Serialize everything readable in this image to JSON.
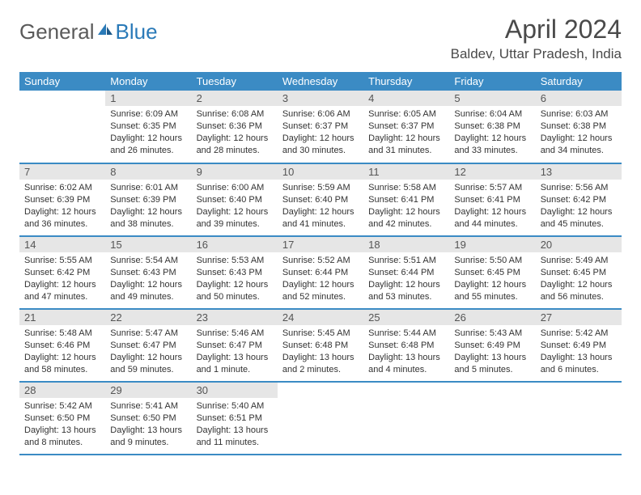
{
  "logo": {
    "word1": "General",
    "word2": "Blue"
  },
  "title": "April 2024",
  "location": "Baldev, Uttar Pradesh, India",
  "colors": {
    "header_blue": "#3b8bc4",
    "daynum_bg": "#e6e6e6",
    "text": "#333333",
    "logo_gray": "#5a5a5a",
    "logo_blue": "#2a7ab8"
  },
  "weekdays": [
    "Sunday",
    "Monday",
    "Tuesday",
    "Wednesday",
    "Thursday",
    "Friday",
    "Saturday"
  ],
  "weeks": [
    [
      null,
      {
        "n": "1",
        "sr": "Sunrise: 6:09 AM",
        "ss": "Sunset: 6:35 PM",
        "dl": "Daylight: 12 hours and 26 minutes."
      },
      {
        "n": "2",
        "sr": "Sunrise: 6:08 AM",
        "ss": "Sunset: 6:36 PM",
        "dl": "Daylight: 12 hours and 28 minutes."
      },
      {
        "n": "3",
        "sr": "Sunrise: 6:06 AM",
        "ss": "Sunset: 6:37 PM",
        "dl": "Daylight: 12 hours and 30 minutes."
      },
      {
        "n": "4",
        "sr": "Sunrise: 6:05 AM",
        "ss": "Sunset: 6:37 PM",
        "dl": "Daylight: 12 hours and 31 minutes."
      },
      {
        "n": "5",
        "sr": "Sunrise: 6:04 AM",
        "ss": "Sunset: 6:38 PM",
        "dl": "Daylight: 12 hours and 33 minutes."
      },
      {
        "n": "6",
        "sr": "Sunrise: 6:03 AM",
        "ss": "Sunset: 6:38 PM",
        "dl": "Daylight: 12 hours and 34 minutes."
      }
    ],
    [
      {
        "n": "7",
        "sr": "Sunrise: 6:02 AM",
        "ss": "Sunset: 6:39 PM",
        "dl": "Daylight: 12 hours and 36 minutes."
      },
      {
        "n": "8",
        "sr": "Sunrise: 6:01 AM",
        "ss": "Sunset: 6:39 PM",
        "dl": "Daylight: 12 hours and 38 minutes."
      },
      {
        "n": "9",
        "sr": "Sunrise: 6:00 AM",
        "ss": "Sunset: 6:40 PM",
        "dl": "Daylight: 12 hours and 39 minutes."
      },
      {
        "n": "10",
        "sr": "Sunrise: 5:59 AM",
        "ss": "Sunset: 6:40 PM",
        "dl": "Daylight: 12 hours and 41 minutes."
      },
      {
        "n": "11",
        "sr": "Sunrise: 5:58 AM",
        "ss": "Sunset: 6:41 PM",
        "dl": "Daylight: 12 hours and 42 minutes."
      },
      {
        "n": "12",
        "sr": "Sunrise: 5:57 AM",
        "ss": "Sunset: 6:41 PM",
        "dl": "Daylight: 12 hours and 44 minutes."
      },
      {
        "n": "13",
        "sr": "Sunrise: 5:56 AM",
        "ss": "Sunset: 6:42 PM",
        "dl": "Daylight: 12 hours and 45 minutes."
      }
    ],
    [
      {
        "n": "14",
        "sr": "Sunrise: 5:55 AM",
        "ss": "Sunset: 6:42 PM",
        "dl": "Daylight: 12 hours and 47 minutes."
      },
      {
        "n": "15",
        "sr": "Sunrise: 5:54 AM",
        "ss": "Sunset: 6:43 PM",
        "dl": "Daylight: 12 hours and 49 minutes."
      },
      {
        "n": "16",
        "sr": "Sunrise: 5:53 AM",
        "ss": "Sunset: 6:43 PM",
        "dl": "Daylight: 12 hours and 50 minutes."
      },
      {
        "n": "17",
        "sr": "Sunrise: 5:52 AM",
        "ss": "Sunset: 6:44 PM",
        "dl": "Daylight: 12 hours and 52 minutes."
      },
      {
        "n": "18",
        "sr": "Sunrise: 5:51 AM",
        "ss": "Sunset: 6:44 PM",
        "dl": "Daylight: 12 hours and 53 minutes."
      },
      {
        "n": "19",
        "sr": "Sunrise: 5:50 AM",
        "ss": "Sunset: 6:45 PM",
        "dl": "Daylight: 12 hours and 55 minutes."
      },
      {
        "n": "20",
        "sr": "Sunrise: 5:49 AM",
        "ss": "Sunset: 6:45 PM",
        "dl": "Daylight: 12 hours and 56 minutes."
      }
    ],
    [
      {
        "n": "21",
        "sr": "Sunrise: 5:48 AM",
        "ss": "Sunset: 6:46 PM",
        "dl": "Daylight: 12 hours and 58 minutes."
      },
      {
        "n": "22",
        "sr": "Sunrise: 5:47 AM",
        "ss": "Sunset: 6:47 PM",
        "dl": "Daylight: 12 hours and 59 minutes."
      },
      {
        "n": "23",
        "sr": "Sunrise: 5:46 AM",
        "ss": "Sunset: 6:47 PM",
        "dl": "Daylight: 13 hours and 1 minute."
      },
      {
        "n": "24",
        "sr": "Sunrise: 5:45 AM",
        "ss": "Sunset: 6:48 PM",
        "dl": "Daylight: 13 hours and 2 minutes."
      },
      {
        "n": "25",
        "sr": "Sunrise: 5:44 AM",
        "ss": "Sunset: 6:48 PM",
        "dl": "Daylight: 13 hours and 4 minutes."
      },
      {
        "n": "26",
        "sr": "Sunrise: 5:43 AM",
        "ss": "Sunset: 6:49 PM",
        "dl": "Daylight: 13 hours and 5 minutes."
      },
      {
        "n": "27",
        "sr": "Sunrise: 5:42 AM",
        "ss": "Sunset: 6:49 PM",
        "dl": "Daylight: 13 hours and 6 minutes."
      }
    ],
    [
      {
        "n": "28",
        "sr": "Sunrise: 5:42 AM",
        "ss": "Sunset: 6:50 PM",
        "dl": "Daylight: 13 hours and 8 minutes."
      },
      {
        "n": "29",
        "sr": "Sunrise: 5:41 AM",
        "ss": "Sunset: 6:50 PM",
        "dl": "Daylight: 13 hours and 9 minutes."
      },
      {
        "n": "30",
        "sr": "Sunrise: 5:40 AM",
        "ss": "Sunset: 6:51 PM",
        "dl": "Daylight: 13 hours and 11 minutes."
      },
      null,
      null,
      null,
      null
    ]
  ]
}
